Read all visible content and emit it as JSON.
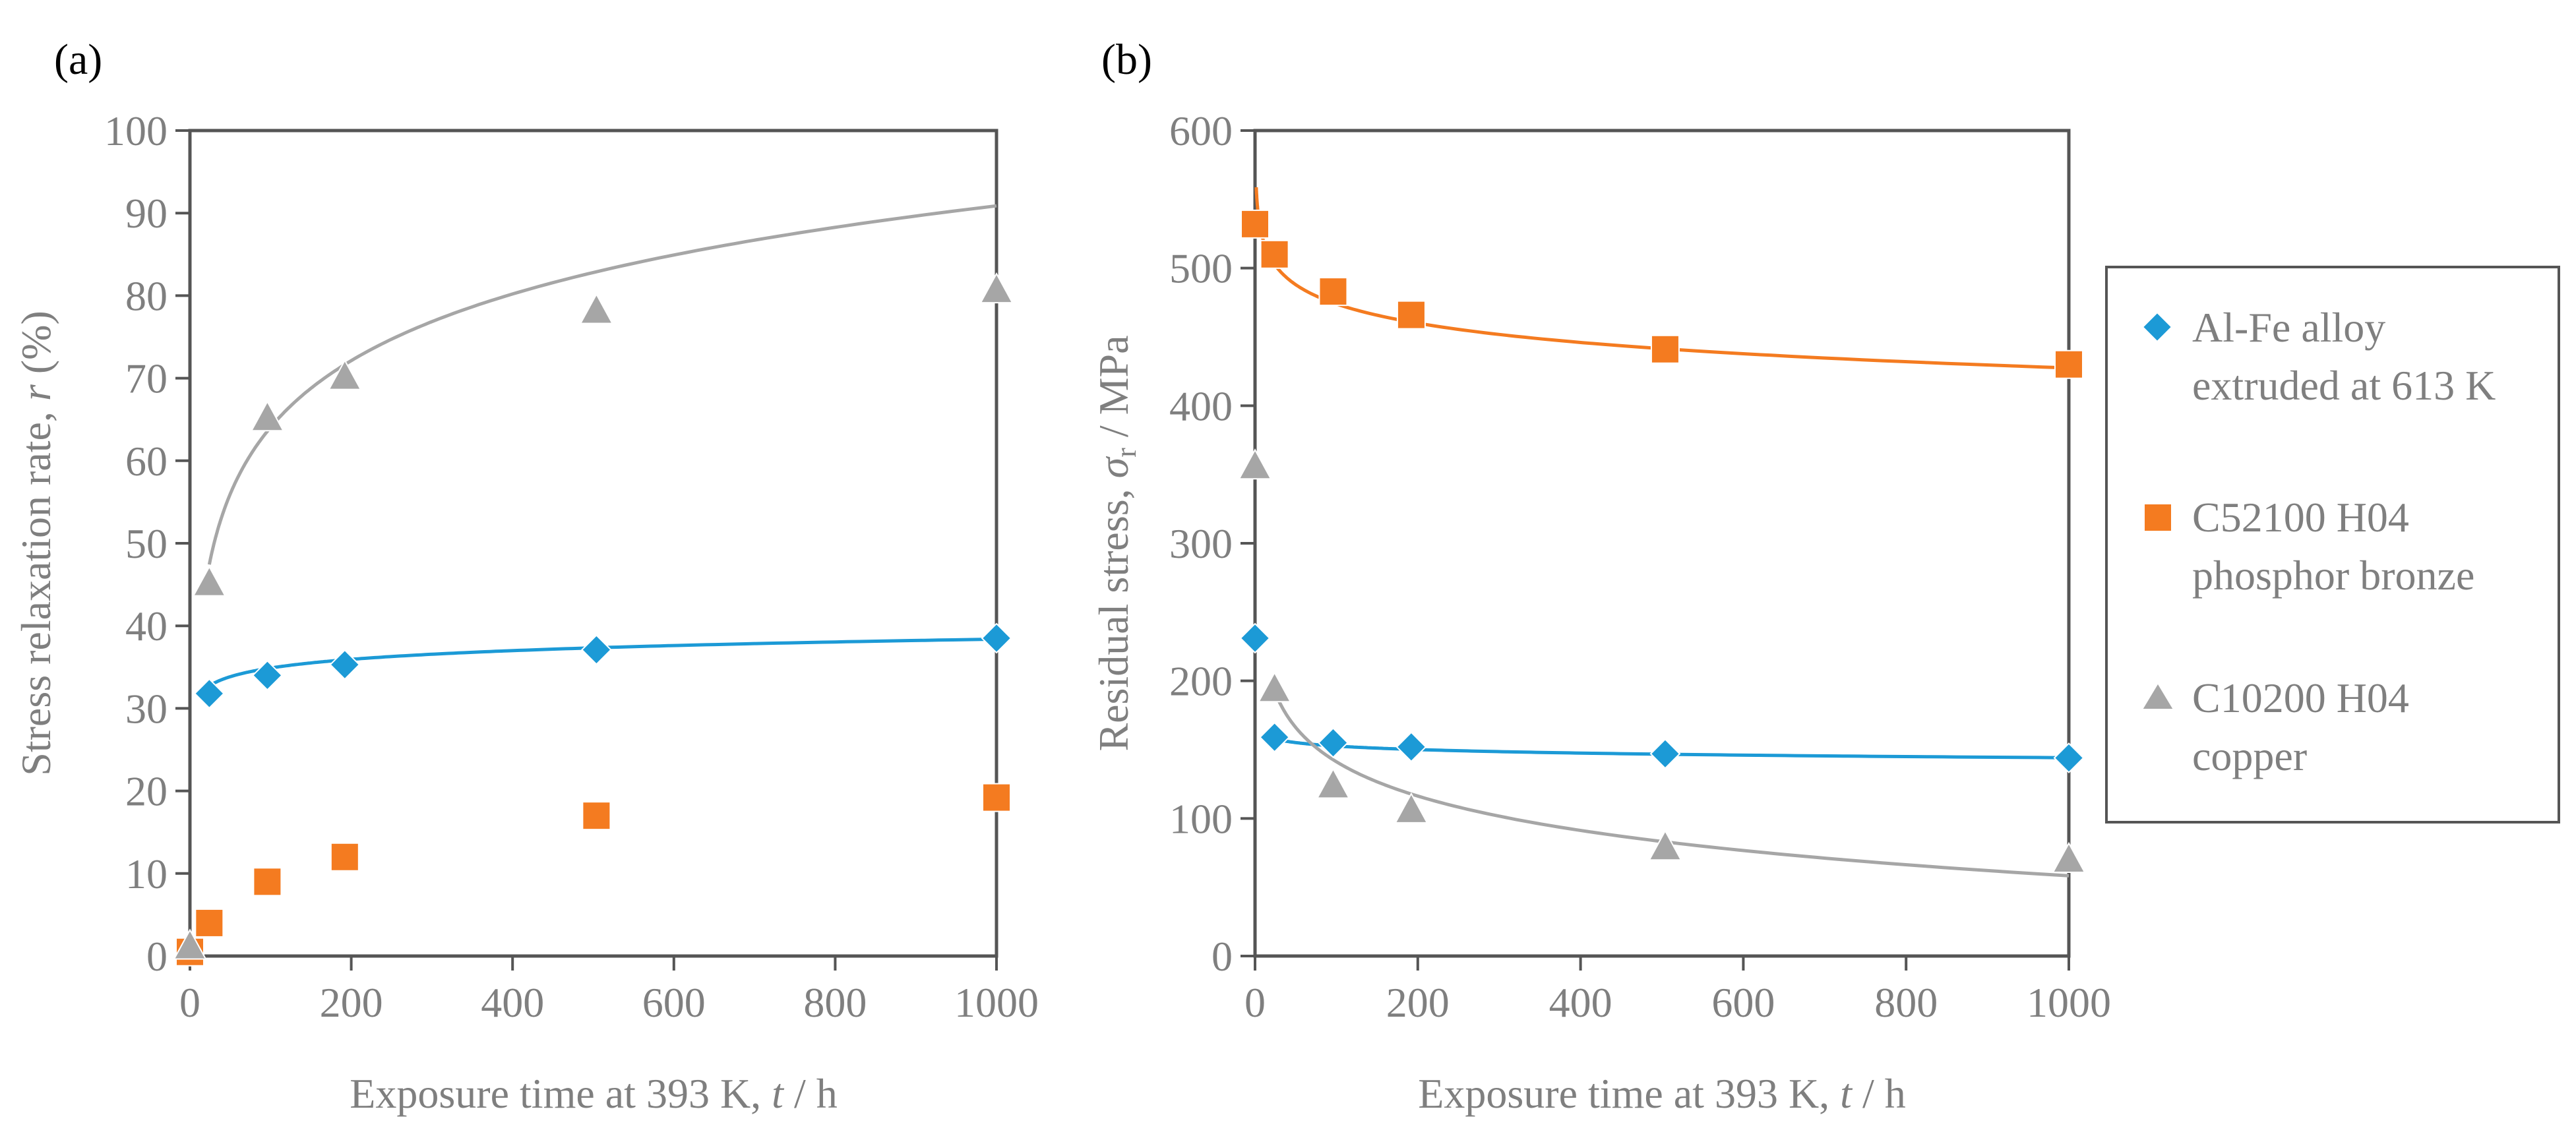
{
  "chart_data": [
    {
      "type": "scatter",
      "panel_label": "(a)",
      "xlabel": "Exposure time at 393 K, ",
      "xlabel_var": "t",
      "xlabel_unit": " / h",
      "ylabel": "Stress relaxation rate, ",
      "ylabel_var": "r",
      "ylabel_unit": " (%)",
      "xlim": [
        0,
        1000
      ],
      "ylim": [
        0,
        100
      ],
      "xticks": [
        0,
        200,
        400,
        600,
        800,
        1000
      ],
      "xtick_labels": [
        "0",
        "200",
        "400",
        "600",
        "800",
        "1000"
      ],
      "yticks": [
        0,
        10,
        20,
        30,
        40,
        50,
        60,
        70,
        80,
        90,
        100
      ],
      "ytick_labels": [
        "0",
        "10",
        "20",
        "30",
        "40",
        "50",
        "60",
        "70",
        "80",
        "90",
        "100"
      ],
      "grid": false,
      "series": [
        {
          "name": "Al-Fe alloy extruded at 613 K",
          "marker": "diamond",
          "color": "#1c9ad6",
          "x": [
            24,
            96,
            192,
            504,
            1000
          ],
          "y": [
            31.8,
            34.0,
            35.3,
            37.1,
            38.5
          ],
          "fit": {
            "a": 27.9,
            "b": 1.518,
            "from": 24,
            "to": 1000
          }
        },
        {
          "name": "C52100 H04 phosphor bronze",
          "marker": "square",
          "color": "#f47b20",
          "x": [
            0,
            24,
            96,
            192,
            504,
            1000
          ],
          "y": [
            0.5,
            4.0,
            9.0,
            12.0,
            17.0,
            19.2
          ],
          "fit": {
            "a": -7.1,
            "b": 3.75,
            "from": 0,
            "to": 1000
          }
        },
        {
          "name": "C10200 H04 copper",
          "marker": "triangle",
          "color": "#a6a6a6",
          "x": [
            0,
            24,
            96,
            192,
            504,
            1000
          ],
          "y": [
            1.0,
            45.0,
            65.0,
            70.0,
            78.0,
            80.5
          ],
          "fit": {
            "a": 10.4,
            "b": 11.65,
            "from": 24,
            "to": 1000
          }
        }
      ]
    },
    {
      "type": "scatter",
      "panel_label": "(b)",
      "xlabel": "Exposure time at 393 K, ",
      "xlabel_var": "t",
      "xlabel_unit": " / h",
      "ylabel": "Residual stress, ",
      "ylabel_var": "σ",
      "ylabel_sub": "r",
      "ylabel_unit": " / MPa",
      "xlim": [
        0,
        1000
      ],
      "ylim": [
        0,
        600
      ],
      "xticks": [
        0,
        200,
        400,
        600,
        800,
        1000
      ],
      "xtick_labels": [
        "0",
        "200",
        "400",
        "600",
        "800",
        "1000"
      ],
      "yticks": [
        0,
        100,
        200,
        300,
        400,
        500,
        600
      ],
      "ytick_labels": [
        "0",
        "100",
        "200",
        "300",
        "400",
        "500",
        "600"
      ],
      "grid": false,
      "series": [
        {
          "name": "Al-Fe alloy extruded at 613 K",
          "marker": "diamond",
          "color": "#1c9ad6",
          "x": [
            0,
            24,
            96,
            192,
            504,
            1000
          ],
          "y": [
            231,
            159,
            155,
            152,
            147,
            144
          ],
          "fit": {
            "a": 169.5,
            "b": -3.67,
            "from": 24,
            "to": 1000
          }
        },
        {
          "name": "C52100 H04 phosphor bronze",
          "marker": "square",
          "color": "#f47b20",
          "x": [
            0,
            24,
            96,
            192,
            504,
            1000
          ],
          "y": [
            532,
            510,
            483,
            466,
            441,
            430
          ],
          "fit": {
            "a": 567,
            "b": -20.2,
            "from": 1.5,
            "to": 1000
          }
        },
        {
          "name": "C10200 H04 copper",
          "marker": "triangle",
          "color": "#a6a6a6",
          "x": [
            0,
            24,
            96,
            192,
            504,
            1000
          ],
          "y": [
            355,
            193,
            123,
            105,
            78,
            69
          ],
          "fit": {
            "a": 307,
            "b": -36.0,
            "from": 24,
            "to": 1000
          }
        }
      ]
    }
  ],
  "legend": {
    "items": [
      {
        "line1": "Al-Fe alloy",
        "line2": "extruded at 613 K",
        "marker": "diamond",
        "color": "#1c9ad6"
      },
      {
        "line1": "C52100 H04",
        "line2": "phosphor bronze",
        "marker": "square",
        "color": "#f47b20"
      },
      {
        "line1": "C10200 H04",
        "line2": "copper",
        "marker": "triangle",
        "color": "#a6a6a6"
      }
    ]
  }
}
